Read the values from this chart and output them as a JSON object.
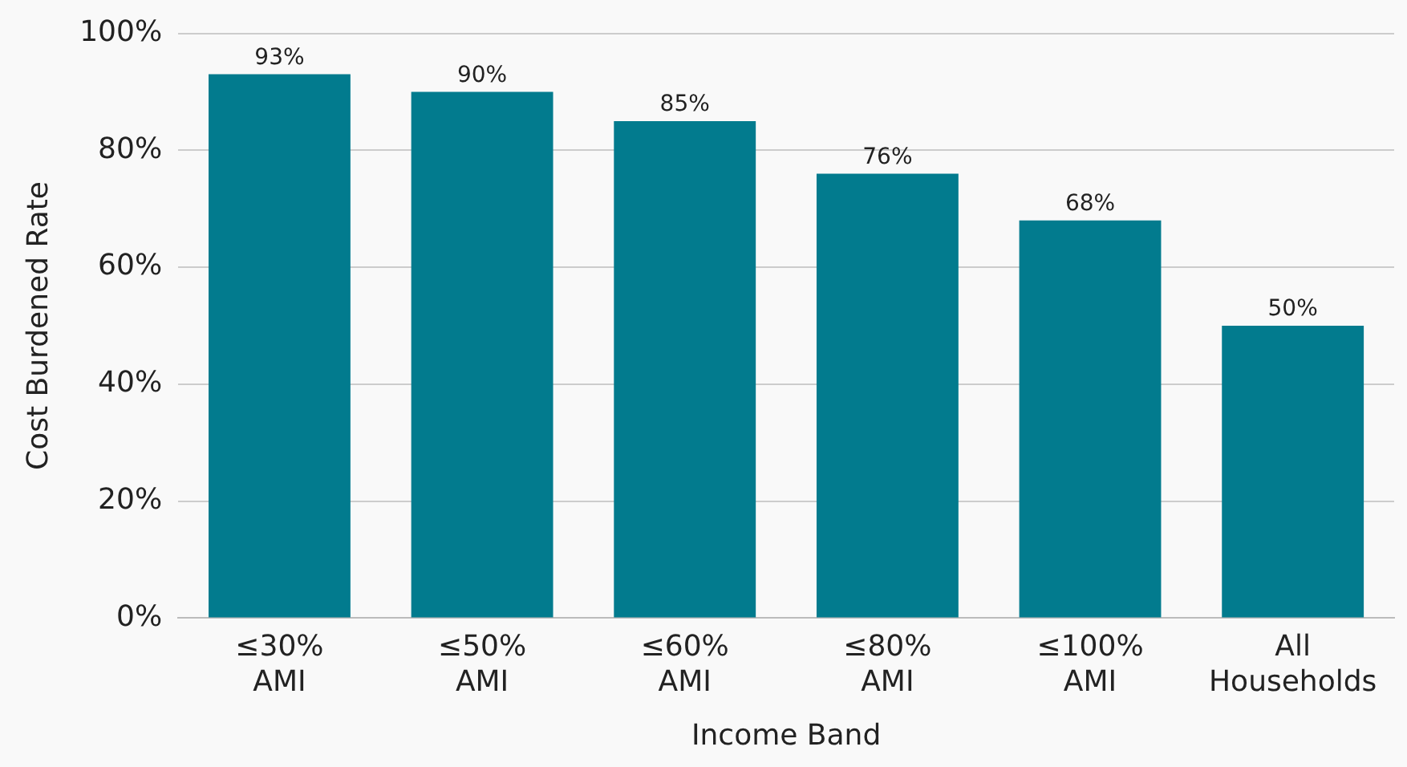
{
  "chart_data": {
    "type": "bar",
    "xlabel": "Income Band",
    "ylabel": "Cost Burdened Rate",
    "categories": [
      "≤30% AMI",
      "≤50% AMI",
      "≤60% AMI",
      "≤80% AMI",
      "≤100% AMI",
      "All Households"
    ],
    "values": [
      93,
      90,
      85,
      76,
      68,
      50
    ],
    "color": "#027b8e",
    "ylim": [
      0,
      100
    ],
    "yticks": [
      {
        "value": 0,
        "label": "0%"
      },
      {
        "value": 20,
        "label": "20%"
      },
      {
        "value": 40,
        "label": "40%"
      },
      {
        "value": 60,
        "label": "60%"
      },
      {
        "value": 80,
        "label": "80%"
      },
      {
        "value": 100,
        "label": "100%"
      }
    ],
    "grid": "y",
    "data_labels": true,
    "value_labels": [
      "93%",
      "90%",
      "85%",
      "76%",
      "68%",
      "50%"
    ]
  }
}
